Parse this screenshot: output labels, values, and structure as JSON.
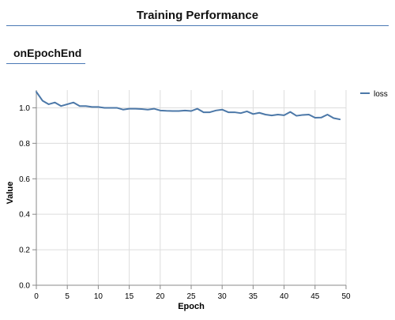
{
  "header": {
    "title": "Training Performance"
  },
  "section": {
    "title": "onEpochEnd"
  },
  "colors": {
    "accent": "#4a79b5",
    "series": "#4c78a8",
    "grid": "#dddddd",
    "axis": "#888888"
  },
  "chart_data": {
    "type": "line",
    "xlabel": "Epoch",
    "ylabel": "Value",
    "xlim": [
      0,
      50
    ],
    "ylim": [
      0,
      1.1
    ],
    "xticks": [
      0,
      5,
      10,
      15,
      20,
      25,
      30,
      35,
      40,
      45,
      50
    ],
    "yticks": [
      0.0,
      0.2,
      0.4,
      0.6,
      0.8,
      1.0
    ],
    "ytick_labels": [
      "0.0",
      "0.2",
      "0.4",
      "0.6",
      "0.8",
      "1.0"
    ],
    "grid": true,
    "legend_position": "top-right",
    "series": [
      {
        "name": "loss",
        "x": [
          0,
          1,
          2,
          3,
          4,
          5,
          6,
          7,
          8,
          9,
          10,
          11,
          12,
          13,
          14,
          15,
          16,
          17,
          18,
          19,
          20,
          21,
          22,
          23,
          24,
          25,
          26,
          27,
          28,
          29,
          30,
          31,
          32,
          33,
          34,
          35,
          36,
          37,
          38,
          39,
          40,
          41,
          42,
          43,
          44,
          45,
          46,
          47,
          48,
          49
        ],
        "values": [
          1.09,
          1.04,
          1.02,
          1.03,
          1.01,
          1.02,
          1.03,
          1.01,
          1.01,
          1.005,
          1.005,
          1.0,
          1.0,
          1.0,
          0.99,
          0.995,
          0.995,
          0.993,
          0.99,
          0.995,
          0.985,
          0.983,
          0.982,
          0.982,
          0.985,
          0.982,
          0.995,
          0.975,
          0.975,
          0.985,
          0.99,
          0.975,
          0.975,
          0.97,
          0.98,
          0.965,
          0.972,
          0.962,
          0.957,
          0.962,
          0.958,
          0.977,
          0.955,
          0.96,
          0.962,
          0.944,
          0.945,
          0.962,
          0.942,
          0.935
        ]
      }
    ]
  }
}
